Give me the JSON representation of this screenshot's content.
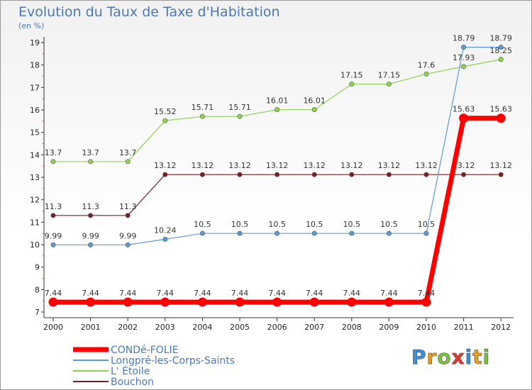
{
  "title": "Evolution du Taux de Taxe d'Habitation",
  "subtitle": "(en %)",
  "logo": {
    "text": "Proxiti",
    "colors": [
      "#3a8fd8",
      "#e8a020",
      "#7cc242",
      "#e23b2e",
      "#3a8fd8",
      "#e8a020",
      "#7cc242"
    ]
  },
  "chart_data": {
    "type": "line",
    "title": "Evolution du Taux de Taxe d'Habitation",
    "ylabel": "(en %)",
    "x": [
      "2000",
      "2001",
      "2002",
      "2003",
      "2004",
      "2005",
      "2006",
      "2007",
      "2008",
      "2009",
      "2010",
      "2011",
      "2012"
    ],
    "ylim": [
      7,
      19
    ],
    "yticks": [
      7,
      8,
      9,
      10,
      11,
      12,
      13,
      14,
      15,
      16,
      17,
      18,
      19
    ],
    "grid": false,
    "legend_position": "bottom-left",
    "series": [
      {
        "name": "CONDé-FOLIE",
        "color": "#ff0000",
        "width": 7,
        "values": [
          7.44,
          7.44,
          7.44,
          7.44,
          7.44,
          7.44,
          7.44,
          7.44,
          7.44,
          7.44,
          7.44,
          15.63,
          15.63
        ],
        "labels": [
          "7.44",
          "7.44",
          "7.44",
          "7.44",
          "7.44",
          "7.44",
          "7.44",
          "7.44",
          "7.44",
          "7.44",
          "7.44",
          "15.63",
          "15.63"
        ]
      },
      {
        "name": "Longpré-les-Corps-Saints",
        "color": "#5b9bd5",
        "width": 1.2,
        "values": [
          9.99,
          9.99,
          9.99,
          10.24,
          10.5,
          10.5,
          10.5,
          10.5,
          10.5,
          10.5,
          10.5,
          18.79,
          18.79
        ],
        "labels": [
          "9.99",
          "9.99",
          "9.99",
          "10.24",
          "10.5",
          "10.5",
          "10.5",
          "10.5",
          "10.5",
          "10.5",
          "10.5",
          "18.79",
          "18.79"
        ]
      },
      {
        "name": "L' Étoile",
        "color": "#8ed34e",
        "width": 1.2,
        "values": [
          13.7,
          13.7,
          13.7,
          15.52,
          15.71,
          15.71,
          16.01,
          16.01,
          17.15,
          17.15,
          17.6,
          17.93,
          18.25
        ],
        "labels": [
          "13.7",
          "13.7",
          "13.7",
          "15.52",
          "15.71",
          "15.71",
          "16.01",
          "16.01",
          "17.15",
          "17.15",
          "17.6",
          "17.93",
          "18.25"
        ]
      },
      {
        "name": "Bouchon",
        "color": "#7a1f22",
        "width": 1.2,
        "values": [
          11.3,
          11.3,
          11.3,
          13.12,
          13.12,
          13.12,
          13.12,
          13.12,
          13.12,
          13.12,
          13.12,
          13.12,
          13.12
        ],
        "labels": [
          "11.3",
          "11.3",
          "11.3",
          "13.12",
          "13.12",
          "13.12",
          "13.12",
          "13.12",
          "13.12",
          "13.12",
          "13.12",
          "13.12",
          "13.12"
        ]
      }
    ]
  }
}
